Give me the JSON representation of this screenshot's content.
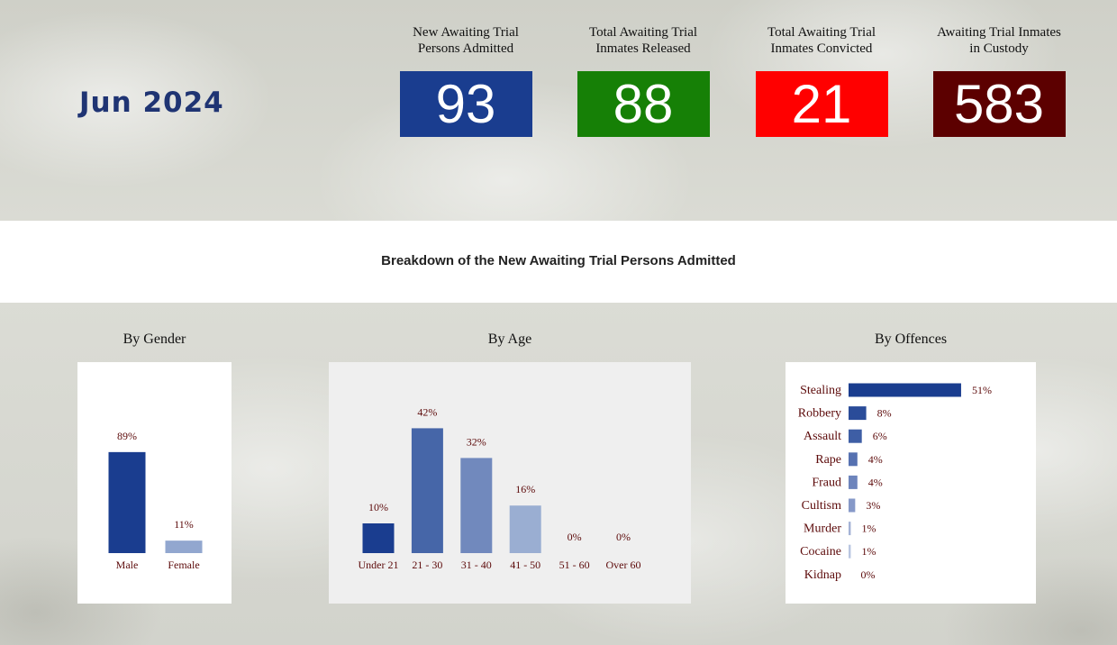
{
  "period": "Jun 2024",
  "kpis": [
    {
      "label_line1": "New Awaiting Trial",
      "label_line2": "Persons Admitted",
      "value": "93",
      "color": "#1a3d8f"
    },
    {
      "label_line1": "Total Awaiting Trial",
      "label_line2": "Inmates Released",
      "value": "88",
      "color": "#168006"
    },
    {
      "label_line1": "Total Awaiting Trial",
      "label_line2": "Inmates Convicted",
      "value": "21",
      "color": "#ff0000"
    },
    {
      "label_line1": "Awaiting Trial Inmates",
      "label_line2": "in Custody",
      "value": "583",
      "color": "#5c0000"
    }
  ],
  "breakdown_title": "Breakdown of the New Awaiting Trial Persons Admitted",
  "sections": {
    "gender_title": "By Gender",
    "age_title": "By Age",
    "offences_title": "By Offences"
  },
  "chart_data": [
    {
      "type": "bar",
      "title": "By Gender",
      "categories": [
        "Male",
        "Female"
      ],
      "values": [
        89,
        11
      ],
      "value_labels": [
        "89%",
        "11%"
      ],
      "colors": [
        "#1a3d8f",
        "#92a7cf"
      ],
      "ylim": [
        0,
        100
      ]
    },
    {
      "type": "bar",
      "title": "By Age",
      "categories": [
        "Under 21",
        "21 - 30",
        "31 - 40",
        "41 - 50",
        "51 - 60",
        "Over 60"
      ],
      "values": [
        10,
        42,
        32,
        16,
        0,
        0
      ],
      "value_labels": [
        "10%",
        "42%",
        "32%",
        "16%",
        "0%",
        "0%"
      ],
      "colors": [
        "#1a3d8f",
        "#4666a8",
        "#7189bd",
        "#9aaed2",
        "#b5c3e0",
        "#c8d3ea"
      ],
      "ylim": [
        0,
        50
      ]
    },
    {
      "type": "bar",
      "orientation": "horizontal",
      "title": "By Offences",
      "categories": [
        "Stealing",
        "Robbery",
        "Assault",
        "Rape",
        "Fraud",
        "Cultism",
        "Murder",
        "Cocaine",
        "Kidnap"
      ],
      "values": [
        51,
        8,
        6,
        4,
        4,
        3,
        1,
        1,
        0
      ],
      "value_labels": [
        "51%",
        "8%",
        "6%",
        "4%",
        "4%",
        "3%",
        "1%",
        "1%",
        "0%"
      ],
      "colors": [
        "#1a3d8f",
        "#2a4c99",
        "#3e5ea5",
        "#5671b1",
        "#6d84bc",
        "#8699c8",
        "#a4b3d6",
        "#b9c6e1",
        "#cbd5ea"
      ],
      "xlim": [
        0,
        60
      ]
    }
  ]
}
